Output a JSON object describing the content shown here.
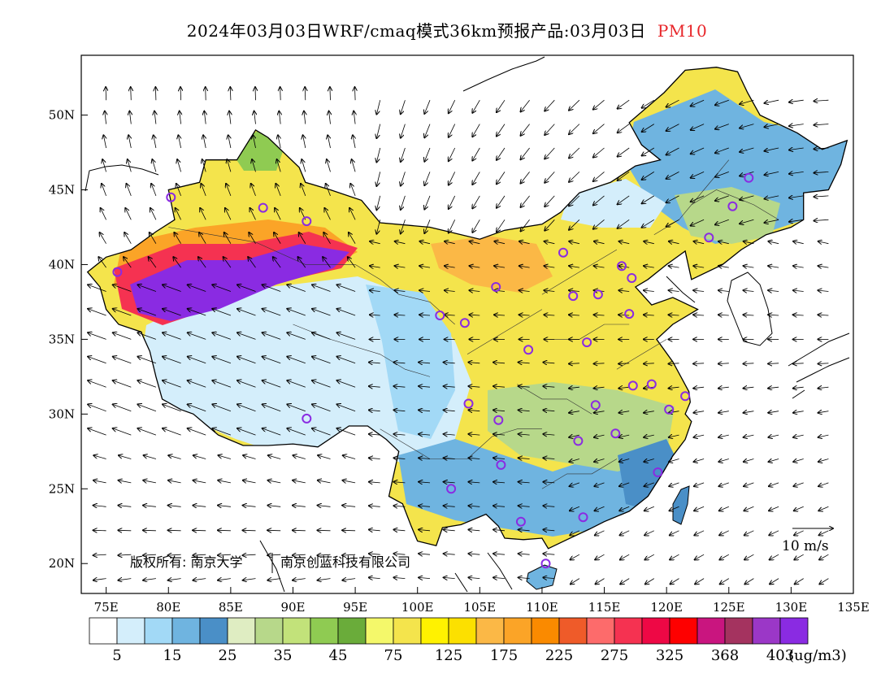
{
  "title": {
    "main": "2024年03月03日WRF/cmaq模式36km预报产品:03月03日",
    "pollutant": "PM10"
  },
  "map": {
    "lon_range": [
      73,
      135
    ],
    "lat_range": [
      18,
      54
    ],
    "lat_ticks": [
      "20N",
      "25N",
      "30N",
      "35N",
      "40N",
      "45N",
      "50N"
    ],
    "lat_values": [
      20,
      25,
      30,
      35,
      40,
      45,
      50
    ],
    "lon_ticks": [
      "75E",
      "80E",
      "85E",
      "90E",
      "95E",
      "100E",
      "105E",
      "110E",
      "115E",
      "120E",
      "125E",
      "130E",
      "135E"
    ],
    "lon_values": [
      75,
      80,
      85,
      90,
      95,
      100,
      105,
      110,
      115,
      120,
      125,
      130,
      135
    ]
  },
  "copyright": {
    "text": "版权所有: 南京大学",
    "text2": "南京创蓝科技有限公司"
  },
  "wind_ref": {
    "label": "10 m/s"
  },
  "colorbar": {
    "colors": [
      "#ffffff",
      "#d4eefb",
      "#a2d9f6",
      "#6fb4e0",
      "#4a8fc7",
      "#dfedc2",
      "#b7d88a",
      "#c2e27a",
      "#8fcb52",
      "#6aac3a",
      "#f4f86a",
      "#f4e44c",
      "#fff200",
      "#fce000",
      "#fbb846",
      "#fba427",
      "#fa8a00",
      "#ef5b29",
      "#fd6b6b",
      "#f53251",
      "#ee0845",
      "#fe0000",
      "#c9157f",
      "#a4335f",
      "#9b37c7",
      "#8a2be2"
    ],
    "labels": [
      "5",
      "15",
      "25",
      "35",
      "45",
      "75",
      "125",
      "175",
      "225",
      "275",
      "325",
      "368",
      "403"
    ],
    "unit": "(ug/m3)"
  },
  "cities": [
    [
      80.2,
      44.5
    ],
    [
      87.6,
      43.8
    ],
    [
      91.1,
      42.9
    ],
    [
      75.9,
      39.5
    ],
    [
      91.1,
      29.7
    ],
    [
      101.8,
      36.6
    ],
    [
      103.8,
      36.1
    ],
    [
      106.3,
      38.5
    ],
    [
      108.9,
      34.3
    ],
    [
      111.7,
      40.8
    ],
    [
      112.5,
      37.9
    ],
    [
      114.5,
      38.0
    ],
    [
      116.4,
      39.9
    ],
    [
      117.2,
      39.1
    ],
    [
      117.0,
      36.7
    ],
    [
      113.6,
      34.8
    ],
    [
      104.1,
      30.7
    ],
    [
      106.5,
      29.6
    ],
    [
      106.7,
      26.6
    ],
    [
      102.7,
      25.0
    ],
    [
      108.3,
      22.8
    ],
    [
      110.3,
      20.0
    ],
    [
      113.3,
      23.1
    ],
    [
      119.3,
      26.1
    ],
    [
      112.9,
      28.2
    ],
    [
      115.9,
      28.7
    ],
    [
      114.3,
      30.6
    ],
    [
      117.3,
      31.9
    ],
    [
      118.8,
      32.0
    ],
    [
      120.2,
      30.3
    ],
    [
      121.5,
      31.2
    ],
    [
      123.4,
      41.8
    ],
    [
      125.3,
      43.9
    ],
    [
      126.6,
      45.8
    ]
  ]
}
